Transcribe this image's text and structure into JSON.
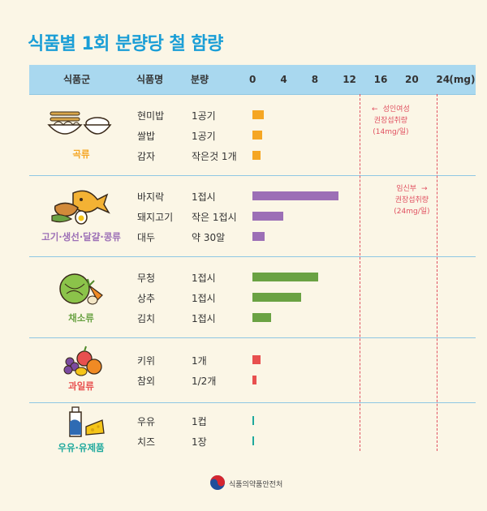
{
  "title": "식품별 1회 분량당 철 함량",
  "header": {
    "group": "식품군",
    "food": "식품명",
    "portion": "분량",
    "unit": "(mg)"
  },
  "chart_data": {
    "type": "bar",
    "orientation": "horizontal",
    "title": "식품별 1회 분량당 철 함량",
    "x_ticks": [
      "0",
      "4",
      "8",
      "12",
      "16",
      "20",
      "24"
    ],
    "xlim": [
      0,
      24
    ],
    "unit": "(mg)",
    "groups": [
      {
        "name": "곡류",
        "color": "#f5a623",
        "items": [
          {
            "food": "현미밥",
            "portion": "1공기",
            "value": 1.5
          },
          {
            "food": "쌀밥",
            "portion": "1공기",
            "value": 1.2
          },
          {
            "food": "감자",
            "portion": "작은것 1개",
            "value": 1.0
          }
        ]
      },
      {
        "name": "고기·생선·달걀·콩류",
        "color": "#9c6fb6",
        "items": [
          {
            "food": "바지락",
            "portion": "1접시",
            "value": 11.0
          },
          {
            "food": "돼지고기",
            "portion": "작은 1접시",
            "value": 4.0
          },
          {
            "food": "대두",
            "portion": "약 30알",
            "value": 1.6
          }
        ]
      },
      {
        "name": "채소류",
        "color": "#6aa243",
        "items": [
          {
            "food": "무청",
            "portion": "1접시",
            "value": 8.4
          },
          {
            "food": "상추",
            "portion": "1접시",
            "value": 6.3
          },
          {
            "food": "김치",
            "portion": "1접시",
            "value": 2.4
          }
        ]
      },
      {
        "name": "과일류",
        "color": "#e8504f",
        "items": [
          {
            "food": "키위",
            "portion": "1개",
            "value": 1.0
          },
          {
            "food": "참외",
            "portion": "1/2개",
            "value": 0.5
          }
        ]
      },
      {
        "name": "우유·유제품",
        "color": "#1fa99d",
        "items": [
          {
            "food": "우유",
            "portion": "1컵",
            "value": 0.2
          },
          {
            "food": "치즈",
            "portion": "1장",
            "value": 0.1
          }
        ]
      }
    ],
    "reference_lines": [
      {
        "value": 14,
        "arrow": "←",
        "line1": "성인여성",
        "line2": "권장섭취량",
        "line3": "(14mg/일)"
      },
      {
        "value": 24,
        "arrow": "→",
        "line1": "임신부",
        "line2": "권장섭취량",
        "line3": "(24mg/일)"
      }
    ]
  },
  "footer": "식품의약품안전처",
  "colors": {
    "background": "#fbf6e6",
    "title": "#1a9ed6",
    "header_bg": "#a9d8ef",
    "reference": "#e05060"
  },
  "icons": [
    "rice-noodle-icon",
    "fish-chicken-egg-icon",
    "cabbage-carrot-icon",
    "fruit-basket-icon",
    "milk-cheese-icon",
    "government-logo-icon"
  ]
}
